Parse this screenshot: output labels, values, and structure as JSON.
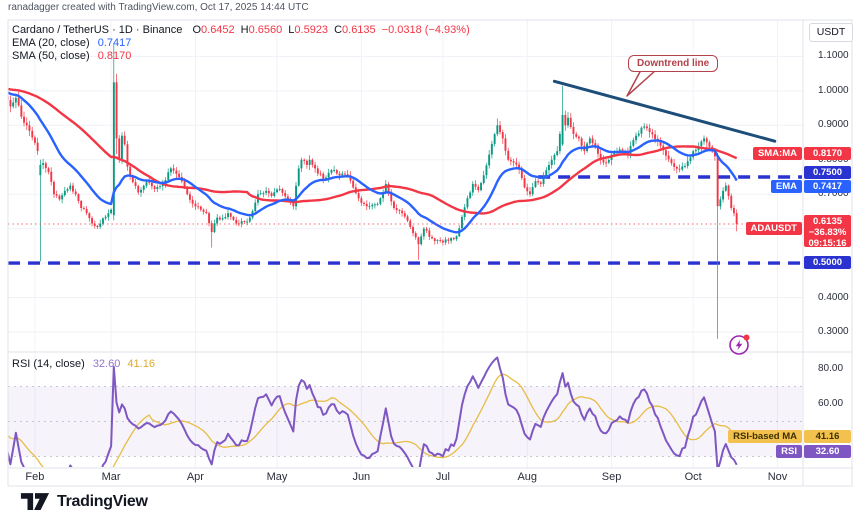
{
  "watermark": "ranadagger created with TradingView.com, Oct 17, 2025 14:44 UTC",
  "legend": {
    "symbol": "Cardano / TetherUS · 1D · Binance",
    "o_label": "O",
    "o": "0.6452",
    "h_label": "H",
    "h": "0.6560",
    "l_label": "L",
    "l": "0.5923",
    "c_label": "C",
    "c": "0.6135",
    "change": "−0.0318 (−4.93%)",
    "ema_label": "EMA (20, close)",
    "ema_value": "0.7417",
    "sma_label": "SMA (50, close)",
    "sma_value": "0.8170"
  },
  "rsi_legend": {
    "title": "RSI (14, close)",
    "rsi_value": "32.60",
    "ma_value": "41.16"
  },
  "annotation": {
    "text": "Downtrend line"
  },
  "axis": {
    "unit": "USDT",
    "price_ticks": [
      {
        "label": "1.1000",
        "p": 1.1
      },
      {
        "label": "1.0000",
        "p": 1.0
      },
      {
        "label": "0.9000",
        "p": 0.9
      },
      {
        "label": "0.8000",
        "p": 0.8
      },
      {
        "label": "0.7000",
        "p": 0.7
      },
      {
        "label": "0.6000",
        "p": 0.6
      },
      {
        "label": "0.4000",
        "p": 0.4
      },
      {
        "label": "0.3000",
        "p": 0.3
      }
    ],
    "rsi_ticks": [
      {
        "label": "80.00",
        "r": 80
      },
      {
        "label": "60.00",
        "r": 60
      }
    ],
    "months": [
      {
        "label": "Feb",
        "i": 11
      },
      {
        "label": "Mar",
        "i": 39
      },
      {
        "label": "Apr",
        "i": 70
      },
      {
        "label": "May",
        "i": 100
      },
      {
        "label": "Jun",
        "i": 131
      },
      {
        "label": "Jul",
        "i": 161
      },
      {
        "label": "Aug",
        "i": 192
      },
      {
        "label": "Sep",
        "i": 223
      },
      {
        "label": "Oct",
        "i": 253
      },
      {
        "label": "Nov",
        "i": 284
      }
    ]
  },
  "badges": {
    "sma": {
      "tag": "SMA:MA",
      "value": "0.8170"
    },
    "level_upper": {
      "value": "0.7500"
    },
    "ema": {
      "tag": "EMA",
      "value": "0.7417"
    },
    "symbol": {
      "tag": "ADAUSDT",
      "value": "0.6135",
      "change": "−36.83%",
      "countdown": "09:15:16"
    },
    "level_lower": {
      "value": "0.5000"
    },
    "rsi_ma": {
      "tag": "RSI-based MA",
      "value": "41.16"
    },
    "rsi": {
      "tag": "RSI",
      "value": "32.60"
    }
  },
  "logo": {
    "text": "TradingView"
  },
  "chart_data": {
    "type": "candlestick",
    "symbol": "ADAUSDT",
    "exchange": "Binance",
    "interval": "1D",
    "last": {
      "open": 0.6452,
      "high": 0.656,
      "low": 0.5923,
      "close": 0.6135,
      "change": -0.0318,
      "change_pct": -4.93
    },
    "indicators": {
      "ema_period": 20,
      "sma_period": 50,
      "ema_last": 0.7417,
      "sma_last": 0.817,
      "rsi_period": 14,
      "rsi_last": 32.6,
      "rsi_ma_last": 41.16
    },
    "ylim": [
      0.28,
      1.2
    ],
    "rsi_band": [
      30,
      70
    ],
    "rsi_mid": 50,
    "y_grid": [
      0.3,
      0.4,
      0.5,
      0.6,
      0.7,
      0.8,
      0.9,
      1.0,
      1.1
    ],
    "levels": [
      {
        "price": 0.75,
        "from_i": 196,
        "style": "dashed"
      },
      {
        "price": 0.5,
        "from_i": 0,
        "style": "dashed"
      }
    ],
    "price_line": 0.6135,
    "trendline": {
      "i1": 202,
      "p1": 1.028,
      "i2": 283,
      "p2": 0.854
    },
    "preroll": {
      "count": 50,
      "from": 1.02,
      "to": 0.995
    },
    "close_anchors": [
      [
        0,
        0.985
      ],
      [
        2,
        0.955
      ],
      [
        4,
        0.98
      ],
      [
        6,
        0.925
      ],
      [
        8,
        0.9
      ],
      [
        10,
        0.865
      ],
      [
        12,
        0.825
      ],
      [
        13,
        0.785
      ],
      [
        14,
        0.79
      ],
      [
        16,
        0.765
      ],
      [
        18,
        0.7
      ],
      [
        20,
        0.685
      ],
      [
        22,
        0.71
      ],
      [
        24,
        0.725
      ],
      [
        26,
        0.7
      ],
      [
        28,
        0.66
      ],
      [
        30,
        0.645
      ],
      [
        32,
        0.615
      ],
      [
        34,
        0.605
      ],
      [
        36,
        0.63
      ],
      [
        38,
        0.645
      ],
      [
        39,
        0.655
      ],
      [
        40,
        1.025
      ],
      [
        41,
        0.862
      ],
      [
        42,
        0.8
      ],
      [
        43,
        0.87
      ],
      [
        44,
        0.845
      ],
      [
        45,
        0.78
      ],
      [
        47,
        0.735
      ],
      [
        49,
        0.705
      ],
      [
        52,
        0.735
      ],
      [
        55,
        0.715
      ],
      [
        58,
        0.73
      ],
      [
        61,
        0.775
      ],
      [
        64,
        0.75
      ],
      [
        67,
        0.7
      ],
      [
        70,
        0.665
      ],
      [
        72,
        0.655
      ],
      [
        74,
        0.645
      ],
      [
        76,
        0.59
      ],
      [
        78,
        0.632
      ],
      [
        80,
        0.63
      ],
      [
        82,
        0.645
      ],
      [
        85,
        0.615
      ],
      [
        88,
        0.62
      ],
      [
        90,
        0.632
      ],
      [
        93,
        0.7
      ],
      [
        96,
        0.71
      ],
      [
        98,
        0.695
      ],
      [
        101,
        0.715
      ],
      [
        104,
        0.685
      ],
      [
        106,
        0.665
      ],
      [
        108,
        0.775
      ],
      [
        109,
        0.8
      ],
      [
        111,
        0.785
      ],
      [
        112,
        0.8
      ],
      [
        114,
        0.775
      ],
      [
        117,
        0.745
      ],
      [
        120,
        0.77
      ],
      [
        123,
        0.755
      ],
      [
        126,
        0.755
      ],
      [
        128,
        0.72
      ],
      [
        131,
        0.675
      ],
      [
        134,
        0.665
      ],
      [
        137,
        0.672
      ],
      [
        140,
        0.73
      ],
      [
        143,
        0.66
      ],
      [
        146,
        0.645
      ],
      [
        149,
        0.605
      ],
      [
        152,
        0.555
      ],
      [
        154,
        0.6
      ],
      [
        157,
        0.572
      ],
      [
        160,
        0.565
      ],
      [
        163,
        0.565
      ],
      [
        166,
        0.578
      ],
      [
        169,
        0.662
      ],
      [
        172,
        0.73
      ],
      [
        174,
        0.712
      ],
      [
        176,
        0.755
      ],
      [
        178,
        0.815
      ],
      [
        181,
        0.9
      ],
      [
        183,
        0.862
      ],
      [
        185,
        0.8
      ],
      [
        187,
        0.792
      ],
      [
        189,
        0.772
      ],
      [
        191,
        0.72
      ],
      [
        193,
        0.7
      ],
      [
        195,
        0.738
      ],
      [
        197,
        0.73
      ],
      [
        199,
        0.77
      ],
      [
        201,
        0.8
      ],
      [
        203,
        0.825
      ],
      [
        205,
        0.93
      ],
      [
        206,
        0.9
      ],
      [
        207,
        0.922
      ],
      [
        209,
        0.875
      ],
      [
        211,
        0.862
      ],
      [
        213,
        0.825
      ],
      [
        215,
        0.862
      ],
      [
        217,
        0.842
      ],
      [
        219,
        0.8
      ],
      [
        221,
        0.792
      ],
      [
        223,
        0.815
      ],
      [
        226,
        0.83
      ],
      [
        229,
        0.818
      ],
      [
        232,
        0.87
      ],
      [
        235,
        0.897
      ],
      [
        237,
        0.88
      ],
      [
        240,
        0.855
      ],
      [
        243,
        0.812
      ],
      [
        245,
        0.79
      ],
      [
        248,
        0.772
      ],
      [
        250,
        0.782
      ],
      [
        253,
        0.825
      ],
      [
        255,
        0.84
      ],
      [
        257,
        0.862
      ],
      [
        259,
        0.838
      ],
      [
        261,
        0.81
      ],
      [
        262,
        0.665
      ],
      [
        263,
        0.685
      ],
      [
        264,
        0.71
      ],
      [
        265,
        0.725
      ],
      [
        266,
        0.695
      ],
      [
        267,
        0.66
      ],
      [
        268,
        0.645
      ],
      [
        269,
        0.6135
      ]
    ],
    "special_candles": {
      "13": {
        "o": 0.755,
        "c": 0.785,
        "l": 0.505,
        "h": 0.8
      },
      "40": {
        "o": 0.639,
        "c": 1.025,
        "l": 0.624,
        "h": 1.138
      },
      "41": {
        "o": 1.025,
        "c": 0.862,
        "l": 0.817,
        "h": 1.05
      },
      "76": {
        "l": 0.545
      },
      "152": {
        "l": 0.51
      },
      "181": {
        "h": 0.92
      },
      "205": {
        "o": 0.845,
        "c": 0.93,
        "h": 1.015,
        "l": 0.84
      },
      "262": {
        "o": 0.81,
        "c": 0.665,
        "l": 0.28,
        "h": 0.82
      },
      "269": {
        "o": 0.6452,
        "c": 0.6135,
        "h": 0.656,
        "l": 0.5923
      }
    },
    "colors": {
      "up": "#089981",
      "down": "#F23645",
      "ema": "#2962FF",
      "sma": "#F23645",
      "trend": "#1d4e79",
      "level": "#2a33cf",
      "rsi": "#7E57C2",
      "rsi_ma": "#E8BC45",
      "grid": "#f0f2f7",
      "frame": "#e0e3eb",
      "price_line": "#F23645",
      "band": "#7E57C2"
    }
  }
}
